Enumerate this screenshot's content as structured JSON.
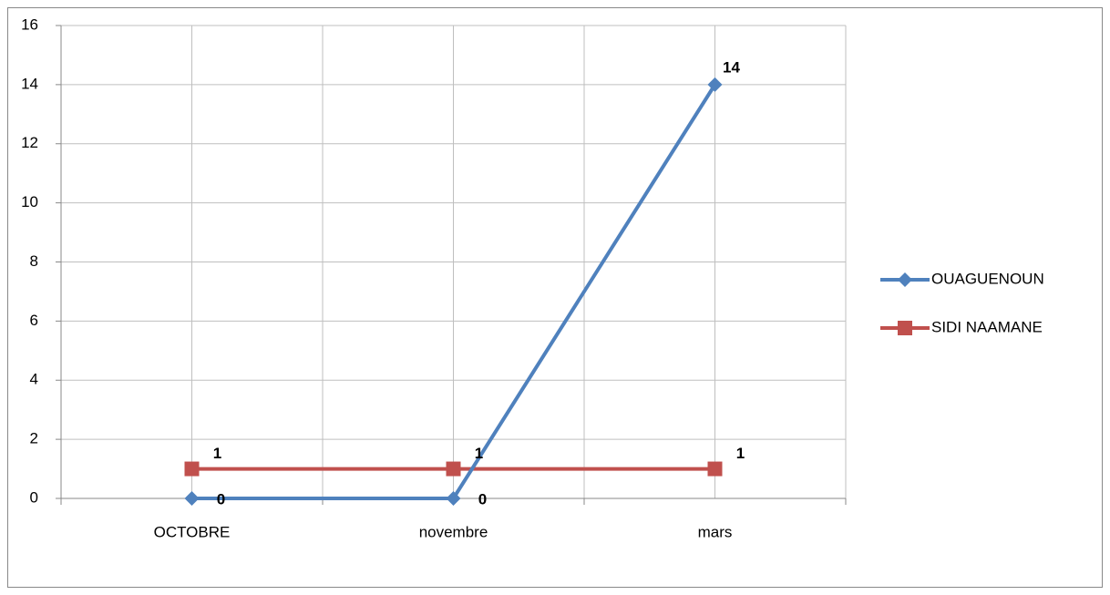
{
  "chart_data": {
    "type": "line",
    "categories": [
      "OCTOBRE",
      "novembre",
      "mars"
    ],
    "series": [
      {
        "name": "OUAGUENOUN",
        "color": "#4f81bd",
        "values": [
          0,
          0,
          14
        ]
      },
      {
        "name": "SIDI NAAMANE",
        "color": "#c0504d",
        "values": [
          1,
          1,
          1
        ]
      }
    ],
    "ylim": [
      0,
      16
    ],
    "yticks": [
      0,
      2,
      4,
      6,
      8,
      10,
      12,
      14,
      16
    ],
    "grid": true,
    "legend": "right",
    "data_labels": true
  }
}
